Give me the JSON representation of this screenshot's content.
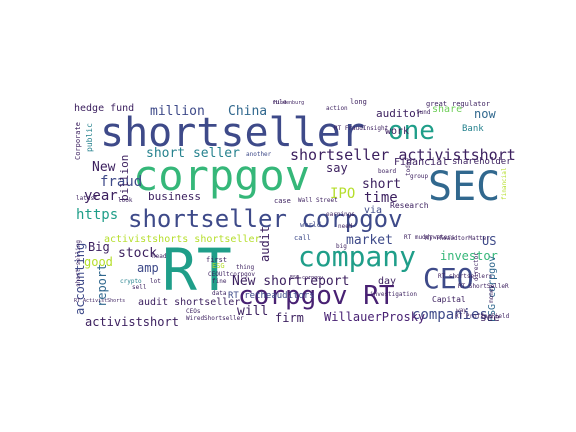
{
  "palette": {
    "dark_navy": "#3b1f5e",
    "indigo": "#3e4a89",
    "blue": "#31688e",
    "teal": "#26828e",
    "green": "#1f9e89",
    "bright_green": "#35b779",
    "lime": "#6ece58",
    "yellow": "#b5de2b",
    "purple": "#482173"
  },
  "words": [
    {
      "text": "shortseller",
      "color": "#3e4a89"
    },
    {
      "text": "corpgov",
      "color": "#35b779"
    },
    {
      "text": "SEC",
      "color": "#31688e"
    },
    {
      "text": "one",
      "color": "#1f9e89"
    },
    {
      "text": "shortseller corpgov",
      "color": "#3e4a89"
    },
    {
      "text": "company",
      "color": "#1f9e89"
    },
    {
      "text": "RT",
      "color": "#1f9e89"
    },
    {
      "text": "CEO",
      "color": "#3e4a89"
    },
    {
      "text": "corpgov RT",
      "color": "#482173"
    },
    {
      "text": "shortseller activistshort",
      "color": "#3b1f5e"
    },
    {
      "text": "short seller",
      "color": "#26828e"
    },
    {
      "text": "million",
      "color": "#3e4a89"
    },
    {
      "text": "China",
      "color": "#31688e"
    },
    {
      "text": "hedge fund",
      "color": "#3b1f5e"
    },
    {
      "text": "auditor",
      "color": "#3b1f5e"
    },
    {
      "text": "share",
      "color": "#6ece58"
    },
    {
      "text": "now",
      "color": "#31688e"
    },
    {
      "text": "work",
      "color": "#3b1f5e"
    },
    {
      "text": "Bank",
      "color": "#26828e"
    },
    {
      "text": "New",
      "color": "#3b1f5e"
    },
    {
      "text": "fraud",
      "color": "#3e4a89"
    },
    {
      "text": "business",
      "color": "#3b1f5e"
    },
    {
      "text": "year",
      "color": "#3b1f5e"
    },
    {
      "text": "https",
      "color": "#1f9e89"
    },
    {
      "text": "good",
      "color": "#b5de2b"
    },
    {
      "text": "Big",
      "color": "#3b1f5e"
    },
    {
      "text": "stock",
      "color": "#3b1f5e"
    },
    {
      "text": "amp",
      "color": "#3e4a89"
    },
    {
      "text": "accounting",
      "color": "#3e4a89"
    },
    {
      "text": "report",
      "color": "#31688e"
    },
    {
      "text": "billion",
      "color": "#3b1f5e"
    },
    {
      "text": "IPO",
      "color": "#b5de2b"
    },
    {
      "text": "say",
      "color": "#3b1f5e"
    },
    {
      "text": "time",
      "color": "#3b1f5e"
    },
    {
      "text": "short",
      "color": "#3b1f5e"
    },
    {
      "text": "market",
      "color": "#3e4a89"
    },
    {
      "text": "investor",
      "color": "#35b779"
    },
    {
      "text": "US",
      "color": "#3e4a89"
    },
    {
      "text": "ESG corpgov",
      "color": "#31688e"
    },
    {
      "text": "companies",
      "color": "#3e4a89"
    },
    {
      "text": "see",
      "color": "#3b1f5e"
    },
    {
      "text": "New shortreport",
      "color": "#3b1f5e"
    },
    {
      "text": "will",
      "color": "#3b1f5e"
    },
    {
      "text": "firm",
      "color": "#3b1f5e"
    },
    {
      "text": "WillauerProsky",
      "color": "#482173"
    },
    {
      "text": "activistshort",
      "color": "#3b1f5e"
    },
    {
      "text": "audit shortseller",
      "color": "#3b1f5e"
    },
    {
      "text": "activistshorts shortseller",
      "color": "#b5de2b"
    },
    {
      "text": "audit",
      "color": "#3b1f5e"
    },
    {
      "text": "Financial",
      "color": "#3b1f5e"
    },
    {
      "text": "shareholder",
      "color": "#3b1f5e"
    },
    {
      "text": "day",
      "color": "#3b1f5e"
    },
    {
      "text": "RT retheauditors",
      "color": "#3e4a89"
    },
    {
      "text": "public",
      "color": "#26828e"
    },
    {
      "text": "via",
      "color": "#3e4a89"
    },
    {
      "text": "Research",
      "color": "#3b1f5e"
    },
    {
      "text": "Capital",
      "color": "#3b1f5e"
    },
    {
      "text": "RT TheaudtorMatter",
      "color": "#3b1f5e"
    },
    {
      "text": "investigation",
      "color": "#3b1f5e"
    },
    {
      "text": "world",
      "color": "#3e4a89"
    },
    {
      "text": "earnings",
      "color": "#3b1f5e"
    },
    {
      "text": "another",
      "color": "#3e4a89"
    },
    {
      "text": "first",
      "color": "#3b1f5e"
    },
    {
      "text": "ESG",
      "color": "#b5de2b"
    },
    {
      "text": "case",
      "color": "#3b1f5e"
    },
    {
      "text": "call",
      "color": "#3e4a89"
    },
    {
      "text": "crypto",
      "color": "#26828e"
    },
    {
      "text": "group",
      "color": "#3b1f5e"
    },
    {
      "text": "great",
      "color": "#3b1f5e"
    },
    {
      "text": "regulator",
      "color": "#3b1f5e"
    },
    {
      "text": "long",
      "color": "#3b1f5e"
    },
    {
      "text": "rule",
      "color": "#3b1f5e"
    },
    {
      "text": "money",
      "color": "#3b1f5e"
    },
    {
      "text": "director",
      "color": "#3b1f5e"
    },
    {
      "text": "RT ProffesField",
      "color": "#3b1f5e"
    },
    {
      "text": "RT FraudInsight",
      "color": "#3b1f5e"
    },
    {
      "text": "RT muddywaters",
      "color": "#3b1f5e"
    },
    {
      "text": "CEOUltcorpgov",
      "color": "#3b1f5e"
    },
    {
      "text": "thing",
      "color": "#3b1f5e"
    },
    {
      "text": "board",
      "color": "#3b1f5e"
    },
    {
      "text": "Corporate",
      "color": "#3b1f5e"
    },
    {
      "text": "Hindenburg",
      "color": "#3b1f5e"
    },
    {
      "text": "latest",
      "color": "#3b1f5e"
    },
    {
      "text": "today",
      "color": "#3b1f5e"
    },
    {
      "text": "look",
      "color": "#3b1f5e"
    },
    {
      "text": "short selling",
      "color": "#3b1f5e"
    },
    {
      "text": "RT shortsellers",
      "color": "#3b1f5e"
    },
    {
      "text": "WiredShortseller",
      "color": "#3b1f5e"
    },
    {
      "text": "RT ShortSelleR",
      "color": "#3b1f5e"
    },
    {
      "text": "ESG corpgov",
      "color": "#3b1f5e"
    },
    {
      "text": "way",
      "color": "#3b1f5e"
    },
    {
      "text": "fund",
      "color": "#3b1f5e"
    },
    {
      "text": "lot",
      "color": "#3b1f5e"
    },
    {
      "text": "need",
      "color": "#3b1f5e"
    },
    {
      "text": "sell",
      "color": "#3b1f5e"
    },
    {
      "text": "head",
      "color": "#3b1f5e"
    },
    {
      "text": "action",
      "color": "#3b1f5e"
    },
    {
      "text": "Wall Street",
      "color": "#3b1f5e"
    },
    {
      "text": "financial",
      "color": "#b5de2b"
    },
    {
      "text": "CEOs",
      "color": "#3b1f5e"
    },
    {
      "text": "RT ActivistShorts",
      "color": "#3b1f5e"
    },
    {
      "text": "data",
      "color": "#3b1f5e"
    },
    {
      "text": "fine",
      "color": "#3b1f5e"
    },
    {
      "text": "big",
      "color": "#3b1f5e"
    }
  ]
}
